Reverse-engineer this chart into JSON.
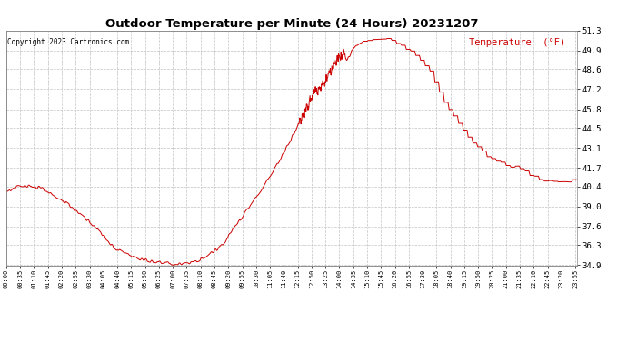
{
  "title": "Outdoor Temperature per Minute (24 Hours) 20231207",
  "copyright_text": "Copyright 2023 Cartronics.com",
  "legend_label": "Temperature  (°F)",
  "line_color": "#cc0000",
  "background_color": "#ffffff",
  "grid_color": "#bbbbbb",
  "ylim": [
    34.9,
    51.3
  ],
  "yticks": [
    34.9,
    36.3,
    37.6,
    39.0,
    40.4,
    41.7,
    43.1,
    44.5,
    45.8,
    47.2,
    48.6,
    49.9,
    51.3
  ],
  "xtick_labels": [
    "00:00",
    "00:35",
    "01:10",
    "01:45",
    "02:20",
    "02:55",
    "03:30",
    "04:05",
    "04:40",
    "05:15",
    "05:50",
    "06:25",
    "07:00",
    "07:35",
    "08:10",
    "08:45",
    "09:20",
    "09:55",
    "10:30",
    "11:05",
    "11:40",
    "12:15",
    "12:50",
    "13:25",
    "14:00",
    "14:35",
    "15:10",
    "15:45",
    "16:20",
    "16:55",
    "17:30",
    "18:05",
    "18:40",
    "19:15",
    "19:50",
    "20:25",
    "21:00",
    "21:35",
    "22:10",
    "22:45",
    "23:20",
    "23:55"
  ],
  "keypoints_minutes": [
    0,
    30,
    60,
    90,
    110,
    150,
    190,
    220,
    250,
    265,
    280,
    300,
    330,
    360,
    390,
    420,
    455,
    470,
    490,
    510,
    530,
    550,
    570,
    600,
    640,
    680,
    720,
    750,
    780,
    790,
    810,
    820,
    830,
    840,
    850,
    855,
    860,
    870,
    880,
    890,
    900,
    910,
    920,
    930,
    940,
    950,
    960,
    975,
    995,
    1020,
    1060,
    1080,
    1095,
    1110,
    1140,
    1170,
    1200,
    1230,
    1260,
    1290,
    1320,
    1350,
    1380,
    1410,
    1439
  ],
  "keypoints_temps": [
    40.0,
    40.5,
    40.4,
    40.3,
    39.9,
    39.3,
    38.4,
    37.7,
    36.8,
    36.3,
    36.0,
    35.7,
    35.4,
    35.2,
    35.1,
    35.0,
    35.05,
    35.1,
    35.3,
    35.6,
    36.0,
    36.5,
    37.3,
    38.5,
    40.0,
    41.8,
    43.8,
    45.5,
    47.2,
    47.1,
    48.2,
    48.6,
    49.2,
    49.4,
    49.7,
    49.5,
    49.2,
    49.8,
    50.1,
    50.3,
    50.5,
    50.6,
    50.6,
    50.6,
    50.7,
    50.8,
    50.8,
    50.6,
    50.2,
    49.8,
    48.8,
    47.8,
    46.9,
    46.0,
    44.8,
    43.6,
    42.8,
    42.2,
    41.9,
    41.7,
    41.2,
    40.9,
    40.7,
    40.8,
    40.8
  ],
  "noise_seed": 42
}
